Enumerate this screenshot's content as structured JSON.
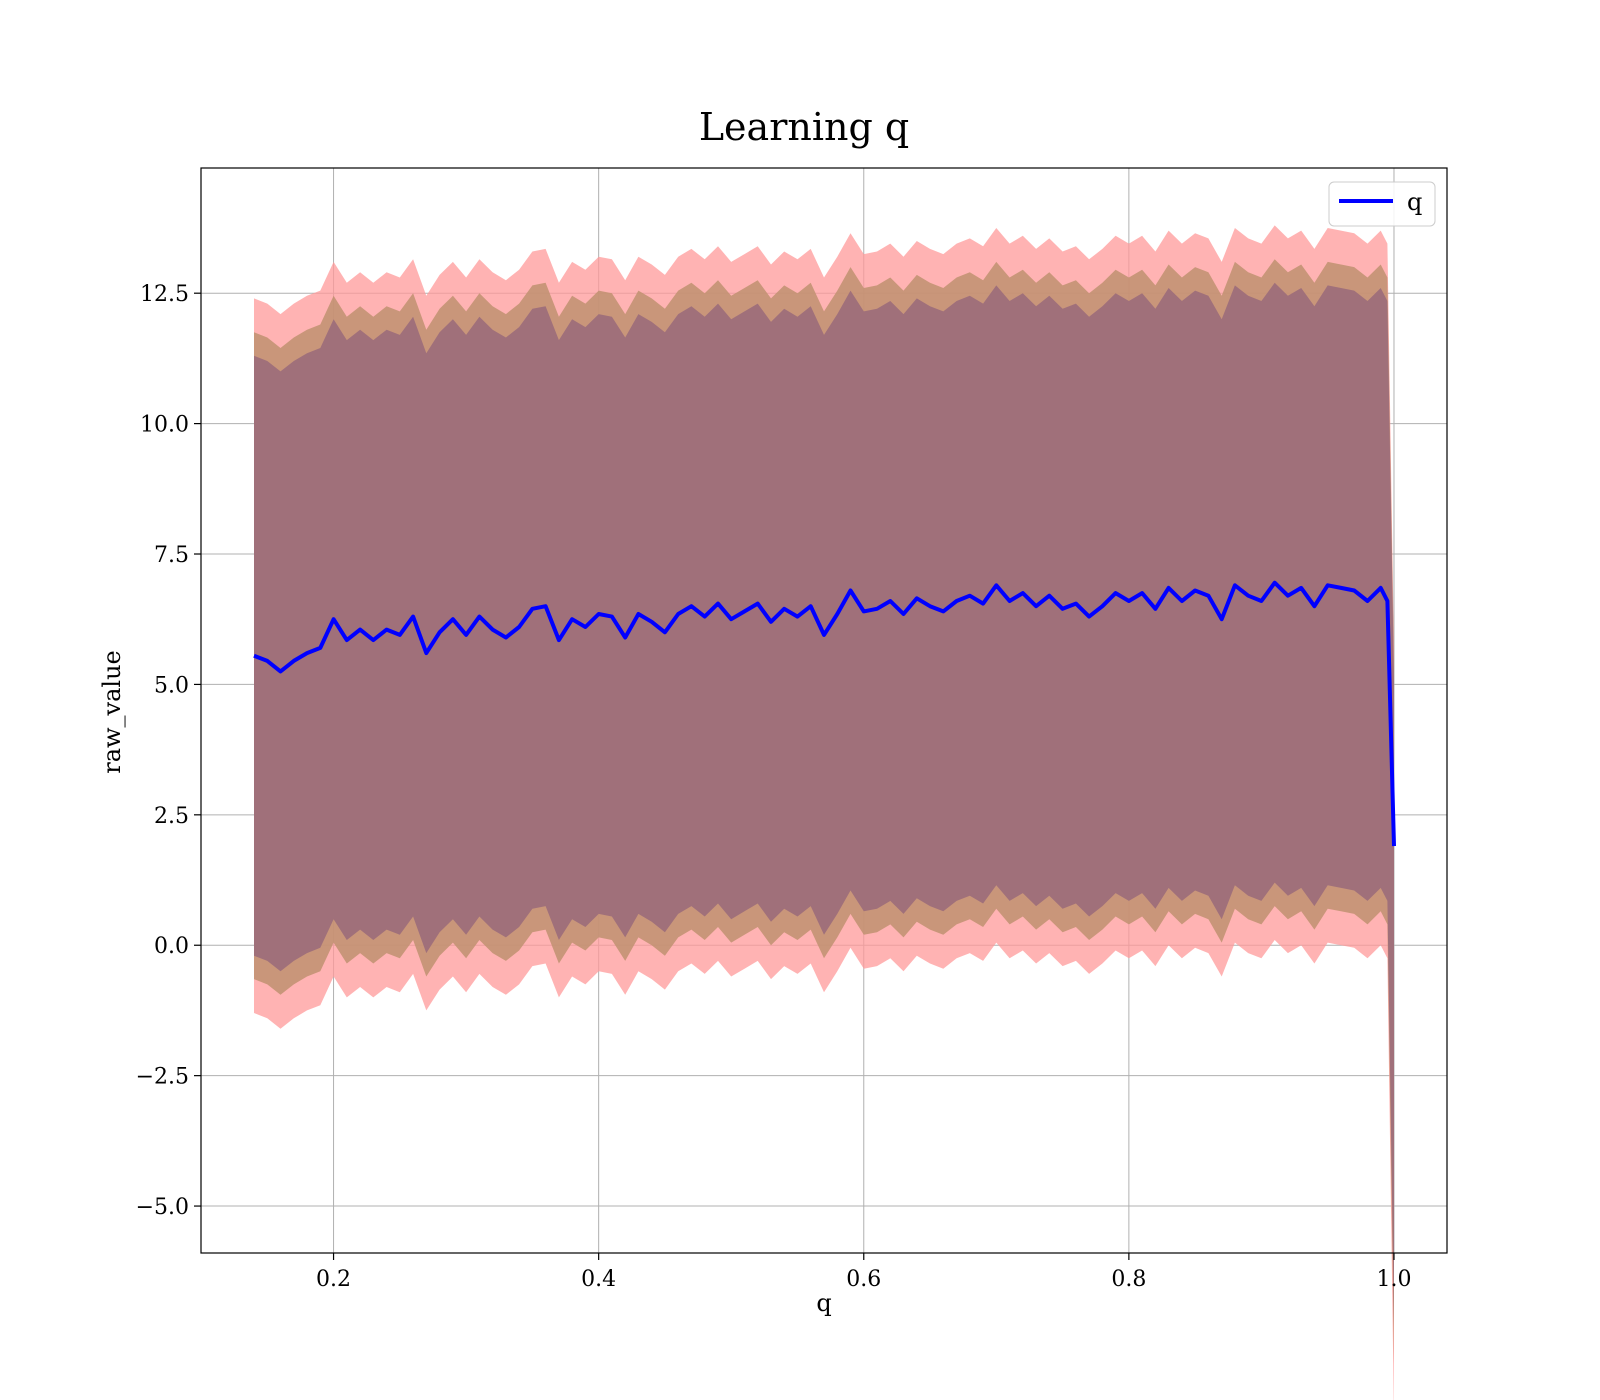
{
  "chart_data": {
    "type": "area",
    "title": "Learning q",
    "xlabel": "q",
    "ylabel": "raw_value",
    "xlim": [
      0.1,
      1.04
    ],
    "ylim": [
      -5.9,
      14.9
    ],
    "xticks": [
      0.2,
      0.4,
      0.6,
      0.8,
      1.0
    ],
    "xtick_labels": [
      "0.2",
      "0.4",
      "0.6",
      "0.8",
      "1.0"
    ],
    "yticks": [
      -5.0,
      -2.5,
      0.0,
      2.5,
      5.0,
      7.5,
      10.0,
      12.5
    ],
    "ytick_labels": [
      "−5.0",
      "−2.5",
      "0.0",
      "2.5",
      "5.0",
      "7.5",
      "10.0",
      "12.5"
    ],
    "grid": true,
    "legend": {
      "position": "top-right",
      "entries": [
        "q"
      ]
    },
    "colors": {
      "line": "#0000ff",
      "band_outer": "#ff9999",
      "band_middle": "#c09070",
      "band_inner": "#a0707a"
    },
    "x": [
      0.14,
      0.15,
      0.16,
      0.17,
      0.18,
      0.19,
      0.2,
      0.21,
      0.22,
      0.23,
      0.24,
      0.25,
      0.26,
      0.27,
      0.28,
      0.29,
      0.3,
      0.31,
      0.32,
      0.33,
      0.34,
      0.35,
      0.36,
      0.37,
      0.38,
      0.39,
      0.4,
      0.41,
      0.42,
      0.43,
      0.44,
      0.45,
      0.46,
      0.47,
      0.48,
      0.49,
      0.5,
      0.51,
      0.52,
      0.53,
      0.54,
      0.55,
      0.56,
      0.57,
      0.58,
      0.59,
      0.6,
      0.61,
      0.62,
      0.63,
      0.64,
      0.65,
      0.66,
      0.67,
      0.68,
      0.69,
      0.7,
      0.71,
      0.72,
      0.73,
      0.74,
      0.75,
      0.76,
      0.77,
      0.78,
      0.79,
      0.8,
      0.81,
      0.82,
      0.83,
      0.84,
      0.85,
      0.86,
      0.87,
      0.88,
      0.89,
      0.9,
      0.91,
      0.92,
      0.93,
      0.94,
      0.95,
      0.96,
      0.97,
      0.98,
      0.99,
      0.995,
      1.0
    ],
    "series": [
      {
        "name": "q",
        "values": [
          5.55,
          5.45,
          5.25,
          5.45,
          5.6,
          5.7,
          6.25,
          5.85,
          6.05,
          5.85,
          6.05,
          5.95,
          6.3,
          5.6,
          6.0,
          6.25,
          5.95,
          6.3,
          6.05,
          5.9,
          6.1,
          6.45,
          6.5,
          5.85,
          6.25,
          6.1,
          6.35,
          6.3,
          5.9,
          6.35,
          6.2,
          6.0,
          6.35,
          6.5,
          6.3,
          6.55,
          6.25,
          6.4,
          6.55,
          6.2,
          6.45,
          6.3,
          6.5,
          5.95,
          6.35,
          6.8,
          6.4,
          6.45,
          6.6,
          6.35,
          6.65,
          6.5,
          6.4,
          6.6,
          6.7,
          6.55,
          6.9,
          6.6,
          6.75,
          6.5,
          6.7,
          6.45,
          6.55,
          6.3,
          6.5,
          6.75,
          6.6,
          6.75,
          6.45,
          6.85,
          6.6,
          6.8,
          6.7,
          6.25,
          6.9,
          6.7,
          6.6,
          6.95,
          6.7,
          6.85,
          6.5,
          6.9,
          6.85,
          6.8,
          6.6,
          6.85,
          6.6,
          1.9
        ]
      }
    ]
  }
}
